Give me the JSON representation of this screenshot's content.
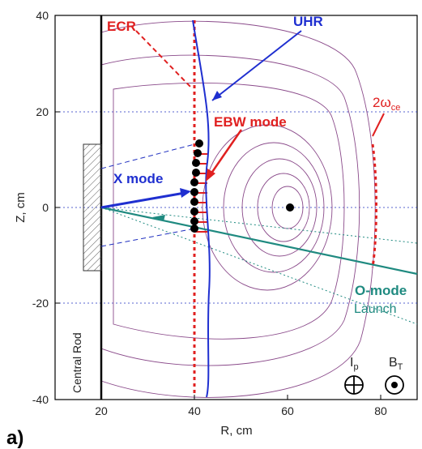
{
  "panel_label": "a)",
  "axes": {
    "xlabel": "R, cm",
    "ylabel": "Z, cm",
    "x_ticks": [
      "20",
      "40",
      "60",
      "80"
    ],
    "y_ticks": [
      "40",
      "20",
      "0",
      "-20",
      "-40"
    ],
    "xlim": [
      14,
      90
    ],
    "ylim": [
      -40,
      40
    ]
  },
  "labels": {
    "ecr": "ECR",
    "uhr": "UHR",
    "two_omega_main": "2ω",
    "two_omega_sub": "ce",
    "ebw_mode": "EBW mode",
    "x_mode": "X mode",
    "o_mode": "O-mode",
    "launch": "Launch",
    "central_rod": "Central Rod",
    "ip": "I",
    "ip_sub": "p",
    "bt": "B",
    "bt_sub": "T"
  },
  "colors": {
    "ecr": "#e02020",
    "uhr": "#1f2fd0",
    "flux": "#8a4a8a",
    "o_mode": "#1f8a80",
    "guide": "#2030c0"
  }
}
